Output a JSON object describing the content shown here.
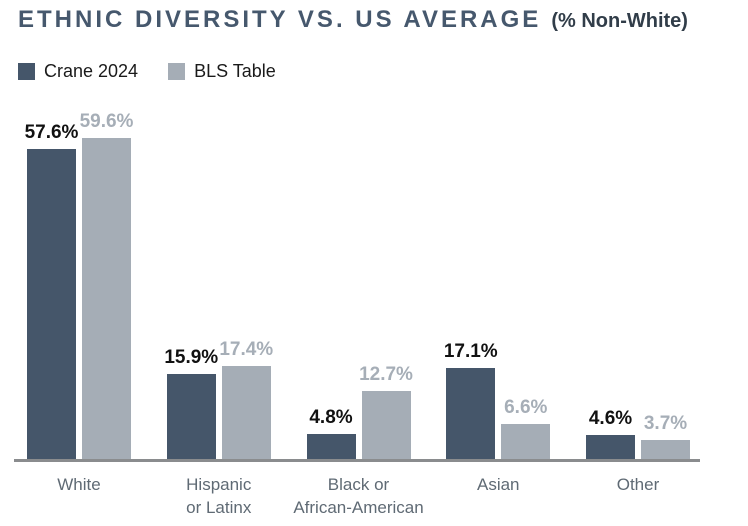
{
  "colors": {
    "background": "#ffffff",
    "title": "#46586d",
    "subtitle": "#313d49",
    "axis_line": "#8a8c8e",
    "category_label": "#5f6a74",
    "series1": "#45566a",
    "series2": "#a5adb6"
  },
  "chart_data": {
    "type": "bar",
    "title": "ETHNIC DIVERSITY VS. US AVERAGE",
    "subtitle": "(% Non-White)",
    "categories": [
      "White",
      "Hispanic or Latinx",
      "Black or African-American",
      "Asian",
      "Other"
    ],
    "category_lines": [
      [
        "White"
      ],
      [
        "Hispanic",
        "or Latinx"
      ],
      [
        "Black or",
        "African-American"
      ],
      [
        "Asian"
      ],
      [
        "Other"
      ]
    ],
    "series": [
      {
        "name": "Crane 2024",
        "values": [
          57.6,
          15.9,
          4.8,
          17.1,
          4.6
        ],
        "display": [
          "57.6%",
          "15.9%",
          "4.8%",
          "17.1%",
          "4.6%"
        ],
        "color": "#45566a",
        "value_label_color": "#111111"
      },
      {
        "name": "BLS Table",
        "values": [
          59.6,
          17.4,
          12.7,
          6.6,
          3.7
        ],
        "display": [
          "59.6%",
          "17.4%",
          "12.7%",
          "6.6%",
          "3.7%"
        ],
        "color": "#a5adb6",
        "value_label_color": "#a6aeb7"
      }
    ],
    "value_suffix": "%",
    "ylim": [
      0,
      65
    ],
    "grid": false,
    "legend_position": "top-left",
    "xlabel": "",
    "ylabel": ""
  }
}
